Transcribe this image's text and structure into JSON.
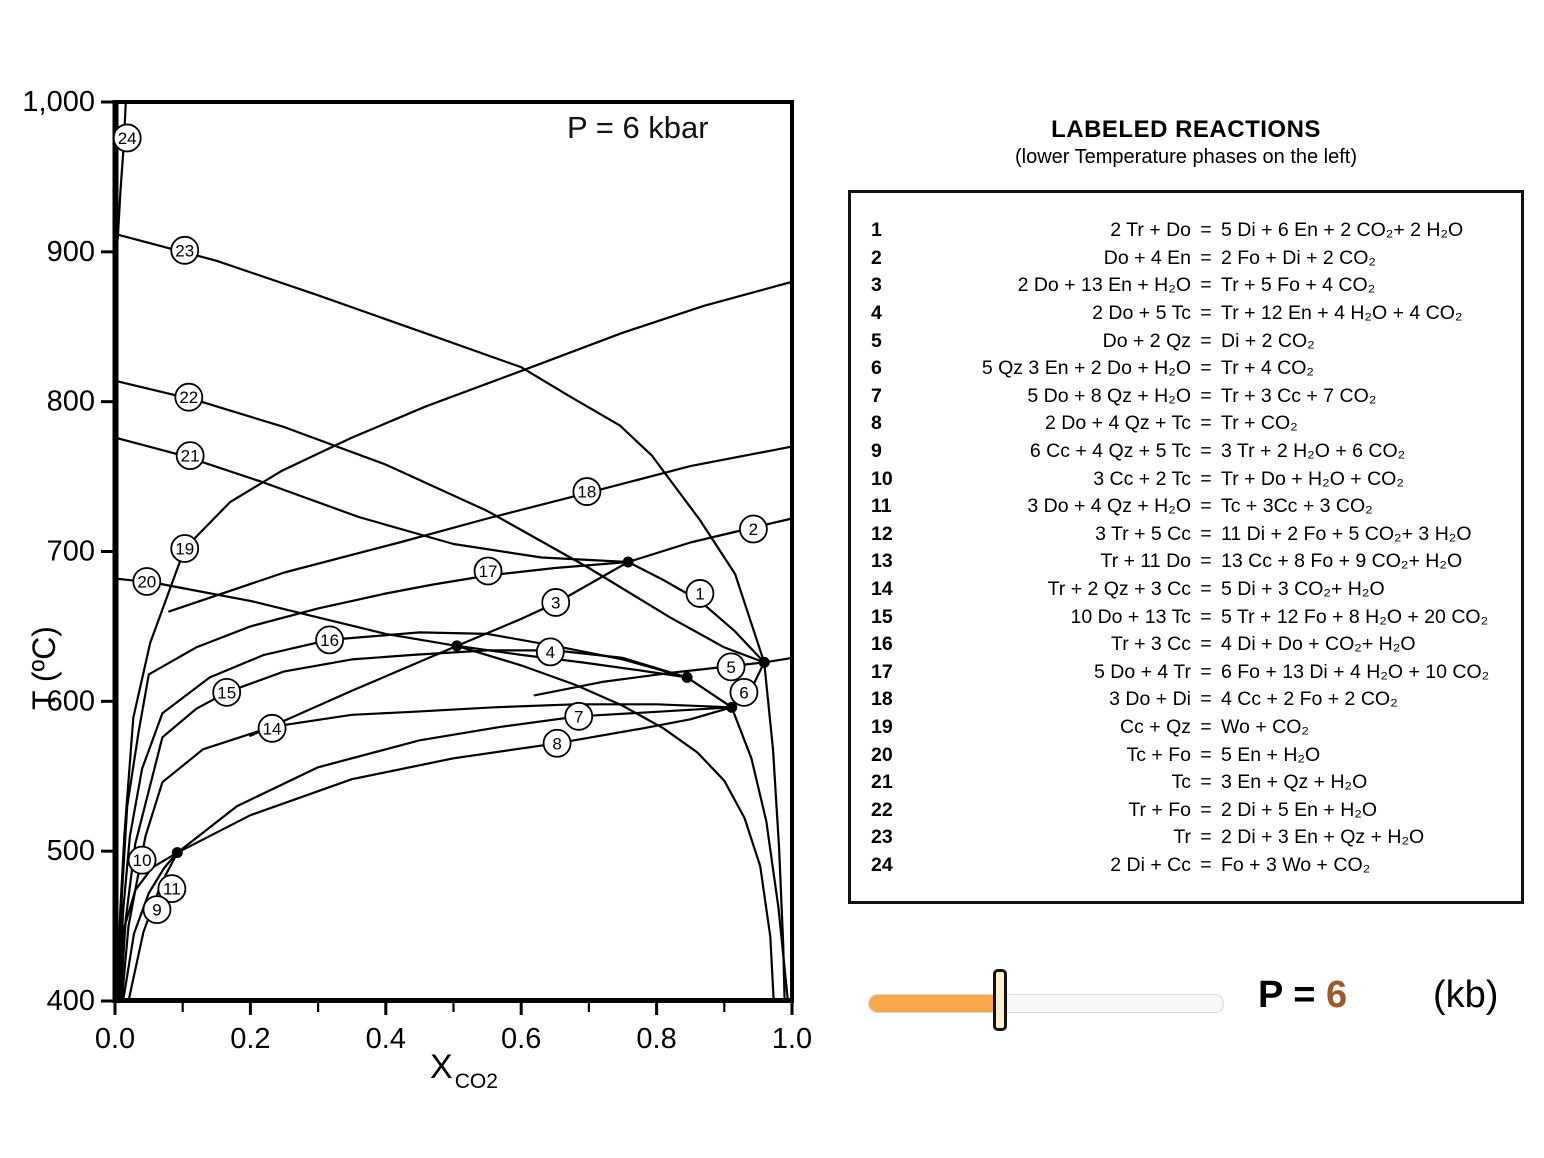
{
  "panel": {
    "title": "LABELED REACTIONS",
    "subtitle": "(lower Temperature phases on the left)",
    "eq_sign": "=",
    "reactions": [
      {
        "n": "1",
        "lhs": "2 Tr + Do",
        "rhs": "5 Di + 6 En + 2 CO₂+ 2 H₂O"
      },
      {
        "n": "2",
        "lhs": "Do + 4 En",
        "rhs": "2 Fo + Di + 2 CO₂"
      },
      {
        "n": "3",
        "lhs": "2 Do + 13 En + H₂O",
        "rhs": "Tr + 5 Fo + 4 CO₂"
      },
      {
        "n": "4",
        "lhs": "2 Do + 5 Tc",
        "rhs": "Tr + 12 En + 4 H₂O + 4 CO₂"
      },
      {
        "n": "5",
        "lhs": "Do + 2 Qz",
        "rhs": "Di + 2 CO₂"
      },
      {
        "n": "6",
        "lhs": "5 Qz 3 En + 2 Do + H₂O",
        "rhs": "Tr + 4 CO₂"
      },
      {
        "n": "7",
        "lhs": "5 Do + 8 Qz + H₂O",
        "rhs": "Tr + 3 Cc + 7 CO₂"
      },
      {
        "n": "8",
        "lhs": "2 Do + 4 Qz + Tc",
        "rhs": "Tr + CO₂"
      },
      {
        "n": "9",
        "lhs": "6 Cc + 4 Qz + 5 Tc",
        "rhs": "3 Tr + 2 H₂O + 6 CO₂"
      },
      {
        "n": "10",
        "lhs": "3 Cc + 2 Tc",
        "rhs": "Tr + Do + H₂O + CO₂"
      },
      {
        "n": "11",
        "lhs": "3 Do + 4 Qz + H₂O",
        "rhs": "Tc + 3Cc + 3 CO₂"
      },
      {
        "n": "12",
        "lhs": "3 Tr + 5 Cc",
        "rhs": "11 Di + 2 Fo + 5 CO₂+ 3 H₂O"
      },
      {
        "n": "13",
        "lhs": "Tr + 11 Do",
        "rhs": "13 Cc + 8 Fo + 9 CO₂+ H₂O"
      },
      {
        "n": "14",
        "lhs": "Tr + 2 Qz + 3 Cc",
        "rhs": "5 Di + 3 CO₂+ H₂O"
      },
      {
        "n": "15",
        "lhs": "10 Do + 13 Tc",
        "rhs": "5 Tr + 12 Fo + 8 H₂O + 20 CO₂"
      },
      {
        "n": "16",
        "lhs": "Tr + 3 Cc",
        "rhs": "4 Di + Do + CO₂+ H₂O"
      },
      {
        "n": "17",
        "lhs": "5 Do + 4 Tr",
        "rhs": "6 Fo + 13 Di + 4 H₂O + 10 CO₂"
      },
      {
        "n": "18",
        "lhs": "3 Do + Di",
        "rhs": "4 Cc + 2 Fo + 2 CO₂"
      },
      {
        "n": "19",
        "lhs": "Cc + Qz",
        "rhs": "Wo + CO₂"
      },
      {
        "n": "20",
        "lhs": "Tc + Fo",
        "rhs": "5 En + H₂O"
      },
      {
        "n": "21",
        "lhs": "Tc",
        "rhs": "3 En + Qz + H₂O"
      },
      {
        "n": "22",
        "lhs": "Tr + Fo",
        "rhs": "2 Di + 5 En + H₂O"
      },
      {
        "n": "23",
        "lhs": "Tr",
        "rhs": "2 Di + 3 En + Qz + H₂O"
      },
      {
        "n": "24",
        "lhs": "2 Di + Cc",
        "rhs": "Fo + 3 Wo + CO₂"
      }
    ]
  },
  "slider": {
    "label": "P =",
    "value": "6",
    "unit": "(kb)",
    "fraction": 0.37,
    "fill_color": "#f5a94b",
    "thumb_color": "#faf0ce",
    "value_color": "#9a5a2c"
  },
  "chart_data": {
    "type": "line",
    "annotation": "P = 6 kbar",
    "xlabel": "X",
    "xlabel_sub": "CO2",
    "ylabel": "T (ºC)",
    "xlim": [
      0,
      1
    ],
    "ylim": [
      400,
      1000
    ],
    "grid": false,
    "x_ticks": [
      {
        "v": 0.0,
        "label": "0.0"
      },
      {
        "v": 0.2,
        "label": "0.2"
      },
      {
        "v": 0.4,
        "label": "0.4"
      },
      {
        "v": 0.6,
        "label": "0.6"
      },
      {
        "v": 0.8,
        "label": "0.8"
      },
      {
        "v": 1.0,
        "label": "1.0"
      }
    ],
    "x_minor_step": 0.1,
    "y_ticks": [
      {
        "v": 400,
        "label": "400"
      },
      {
        "v": 500,
        "label": "500"
      },
      {
        "v": 600,
        "label": "600"
      },
      {
        "v": 700,
        "label": "700"
      },
      {
        "v": 800,
        "label": "800"
      },
      {
        "v": 900,
        "label": "900"
      },
      {
        "v": 1000,
        "label": "1,000"
      }
    ],
    "series": [
      {
        "id": "24",
        "points": [
          [
            0.004,
            908
          ],
          [
            0.008,
            940
          ],
          [
            0.013,
            972
          ],
          [
            0.016,
            1000
          ]
        ]
      },
      {
        "id": "23",
        "points": [
          [
            0,
            912
          ],
          [
            0.15,
            894
          ],
          [
            0.3,
            871
          ],
          [
            0.45,
            847
          ],
          [
            0.6,
            823
          ],
          [
            0.67,
            804
          ],
          [
            0.746,
            784
          ],
          [
            0.793,
            764
          ],
          [
            0.864,
            721
          ],
          [
            0.916,
            685
          ],
          [
            0.959,
            626
          ],
          [
            0.972,
            568
          ],
          [
            0.981,
            502
          ],
          [
            0.987,
            438
          ],
          [
            0.989,
            400
          ]
        ]
      },
      {
        "id": "22",
        "points": [
          [
            0,
            814
          ],
          [
            0.12,
            801
          ],
          [
            0.25,
            783
          ],
          [
            0.4,
            758
          ],
          [
            0.55,
            727
          ],
          [
            0.7,
            689
          ],
          [
            0.82,
            656
          ],
          [
            0.9,
            636
          ],
          [
            0.959,
            626
          ]
        ]
      },
      {
        "id": "21",
        "points": [
          [
            0,
            776
          ],
          [
            0.1,
            764
          ],
          [
            0.22,
            746
          ],
          [
            0.36,
            723
          ],
          [
            0.5,
            705
          ],
          [
            0.63,
            696
          ],
          [
            0.758,
            693
          ]
        ]
      },
      {
        "id": "20",
        "points": [
          [
            0,
            682
          ],
          [
            0.06,
            679
          ],
          [
            0.13,
            673
          ],
          [
            0.2,
            667
          ],
          [
            0.3,
            656
          ],
          [
            0.4,
            645
          ],
          [
            0.505,
            637
          ],
          [
            0.6,
            624
          ],
          [
            0.68,
            611
          ],
          [
            0.75,
            597
          ],
          [
            0.81,
            582
          ],
          [
            0.86,
            566
          ],
          [
            0.9,
            547
          ],
          [
            0.93,
            522
          ],
          [
            0.953,
            490
          ],
          [
            0.968,
            443
          ],
          [
            0.973,
            400
          ]
        ]
      },
      {
        "id": "19",
        "points": [
          [
            0.004,
            415
          ],
          [
            0.008,
            462
          ],
          [
            0.014,
            512
          ],
          [
            0.027,
            589
          ],
          [
            0.052,
            639
          ],
          [
            0.103,
            702
          ],
          [
            0.17,
            733
          ],
          [
            0.247,
            754
          ],
          [
            0.35,
            776
          ],
          [
            0.46,
            797
          ],
          [
            0.609,
            822
          ],
          [
            0.75,
            846
          ],
          [
            0.87,
            864
          ],
          [
            1.0,
            880
          ]
        ]
      },
      {
        "id": "18",
        "points": [
          [
            0.08,
            660
          ],
          [
            0.25,
            686
          ],
          [
            0.42,
            706
          ],
          [
            0.55,
            722
          ],
          [
            0.697,
            739
          ],
          [
            0.85,
            757
          ],
          [
            1.0,
            770
          ]
        ]
      },
      {
        "id": "17",
        "points": [
          [
            0.005,
            400
          ],
          [
            0.01,
            470
          ],
          [
            0.018,
            530
          ],
          [
            0.035,
            580
          ],
          [
            0.05,
            618
          ],
          [
            0.12,
            636
          ],
          [
            0.2,
            650
          ],
          [
            0.3,
            662
          ],
          [
            0.4,
            672
          ],
          [
            0.47,
            678
          ],
          [
            0.551,
            684
          ],
          [
            0.65,
            689
          ],
          [
            0.758,
            693
          ]
        ]
      },
      {
        "id": "16",
        "points": [
          [
            0.006,
            400
          ],
          [
            0.012,
            460
          ],
          [
            0.022,
            510
          ],
          [
            0.04,
            555
          ],
          [
            0.07,
            592
          ],
          [
            0.14,
            616
          ],
          [
            0.22,
            631
          ],
          [
            0.316,
            641
          ],
          [
            0.45,
            646
          ],
          [
            0.55,
            645
          ],
          [
            0.65,
            637
          ],
          [
            0.75,
            628
          ],
          [
            0.845,
            616
          ]
        ]
      },
      {
        "id": "15",
        "points": [
          [
            0.008,
            400
          ],
          [
            0.016,
            455
          ],
          [
            0.03,
            505
          ],
          [
            0.07,
            576
          ],
          [
            0.12,
            595
          ],
          [
            0.165,
            606
          ],
          [
            0.25,
            620
          ],
          [
            0.35,
            628
          ],
          [
            0.44,
            631
          ],
          [
            0.55,
            634
          ],
          [
            0.65,
            634
          ],
          [
            0.75,
            629
          ],
          [
            0.845,
            616
          ]
        ]
      },
      {
        "id": "14",
        "points": [
          [
            0.01,
            400
          ],
          [
            0.02,
            450
          ],
          [
            0.045,
            510
          ],
          [
            0.07,
            546
          ],
          [
            0.13,
            568
          ],
          [
            0.232,
            583
          ],
          [
            0.35,
            591
          ],
          [
            0.44,
            593
          ],
          [
            0.56,
            596
          ],
          [
            0.68,
            598
          ],
          [
            0.8,
            598
          ],
          [
            0.911,
            596
          ]
        ]
      },
      {
        "id": "3",
        "points": [
          [
            0.2,
            577
          ],
          [
            0.35,
            607
          ],
          [
            0.505,
            637
          ],
          [
            0.6,
            655
          ],
          [
            0.653,
            666
          ],
          [
            0.758,
            693
          ]
        ]
      },
      {
        "id": "4",
        "points": [
          [
            0.505,
            637
          ],
          [
            0.6,
            631
          ],
          [
            0.69,
            626
          ],
          [
            0.77,
            621
          ],
          [
            0.845,
            616
          ]
        ]
      },
      {
        "id": "1",
        "points": [
          [
            0.758,
            693
          ],
          [
            0.81,
            681
          ],
          [
            0.864,
            667
          ],
          [
            0.915,
            647
          ],
          [
            0.959,
            626
          ]
        ]
      },
      {
        "id": "2",
        "points": [
          [
            0.758,
            693
          ],
          [
            0.85,
            706
          ],
          [
            0.943,
            716
          ],
          [
            1.0,
            722
          ]
        ]
      },
      {
        "id": "5",
        "points": [
          [
            0.62,
            604
          ],
          [
            0.72,
            613
          ],
          [
            0.82,
            619
          ],
          [
            0.9,
            623
          ],
          [
            0.959,
            626
          ],
          [
            1.0,
            629
          ]
        ]
      },
      {
        "id": "6",
        "points": [
          [
            0.911,
            596
          ],
          [
            0.93,
            605
          ],
          [
            0.945,
            613
          ],
          [
            0.959,
            626
          ]
        ]
      },
      {
        "id": "7",
        "points": [
          [
            0.092,
            499
          ],
          [
            0.18,
            530
          ],
          [
            0.3,
            556
          ],
          [
            0.45,
            574
          ],
          [
            0.57,
            583
          ],
          [
            0.685,
            590
          ],
          [
            0.8,
            593
          ],
          [
            0.911,
            596
          ]
        ]
      },
      {
        "id": "8",
        "points": [
          [
            0.092,
            499
          ],
          [
            0.2,
            524
          ],
          [
            0.35,
            548
          ],
          [
            0.5,
            562
          ],
          [
            0.653,
            572
          ],
          [
            0.78,
            582
          ],
          [
            0.85,
            588
          ],
          [
            0.911,
            596
          ]
        ]
      },
      {
        "id": "9",
        "points": [
          [
            0.02,
            400
          ],
          [
            0.042,
            446
          ],
          [
            0.068,
            478
          ],
          [
            0.092,
            499
          ]
        ]
      },
      {
        "id": "10",
        "points": [
          [
            0.004,
            400
          ],
          [
            0.013,
            448
          ],
          [
            0.03,
            474
          ],
          [
            0.055,
            489
          ],
          [
            0.092,
            499
          ]
        ]
      },
      {
        "id": "11",
        "points": [
          [
            0.012,
            400
          ],
          [
            0.028,
            445
          ],
          [
            0.05,
            472
          ],
          [
            0.073,
            489
          ],
          [
            0.092,
            499
          ]
        ]
      },
      {
        "id": "cd-segment",
        "points": [
          [
            0.845,
            616
          ],
          [
            0.878,
            606
          ],
          [
            0.911,
            596
          ]
        ]
      },
      {
        "id": "d-tail",
        "points": [
          [
            0.911,
            596
          ],
          [
            0.94,
            562
          ],
          [
            0.962,
            520
          ],
          [
            0.98,
            462
          ],
          [
            0.994,
            400
          ]
        ]
      }
    ],
    "curve_labels": [
      {
        "n": "24",
        "x": 0.018,
        "t": 976
      },
      {
        "n": "23",
        "x": 0.103,
        "t": 901
      },
      {
        "n": "22",
        "x": 0.109,
        "t": 803
      },
      {
        "n": "21",
        "x": 0.111,
        "t": 764
      },
      {
        "n": "20",
        "x": 0.047,
        "t": 680
      },
      {
        "n": "19",
        "x": 0.103,
        "t": 702
      },
      {
        "n": "18",
        "x": 0.697,
        "t": 740
      },
      {
        "n": "17",
        "x": 0.551,
        "t": 687
      },
      {
        "n": "16",
        "x": 0.317,
        "t": 641
      },
      {
        "n": "15",
        "x": 0.165,
        "t": 606
      },
      {
        "n": "14",
        "x": 0.232,
        "t": 582
      },
      {
        "n": "3",
        "x": 0.651,
        "t": 666
      },
      {
        "n": "4",
        "x": 0.643,
        "t": 633
      },
      {
        "n": "1",
        "x": 0.864,
        "t": 672
      },
      {
        "n": "2",
        "x": 0.943,
        "t": 715
      },
      {
        "n": "5",
        "x": 0.91,
        "t": 623
      },
      {
        "n": "6",
        "x": 0.929,
        "t": 606
      },
      {
        "n": "7",
        "x": 0.685,
        "t": 590
      },
      {
        "n": "8",
        "x": 0.653,
        "t": 572
      },
      {
        "n": "10",
        "x": 0.04,
        "t": 494
      },
      {
        "n": "11",
        "x": 0.084,
        "t": 475
      },
      {
        "n": "9",
        "x": 0.062,
        "t": 461
      }
    ],
    "invariant_points": [
      [
        0.092,
        499
      ],
      [
        0.505,
        637
      ],
      [
        0.758,
        693
      ],
      [
        0.845,
        616
      ],
      [
        0.911,
        596
      ],
      [
        0.959,
        626
      ]
    ]
  }
}
